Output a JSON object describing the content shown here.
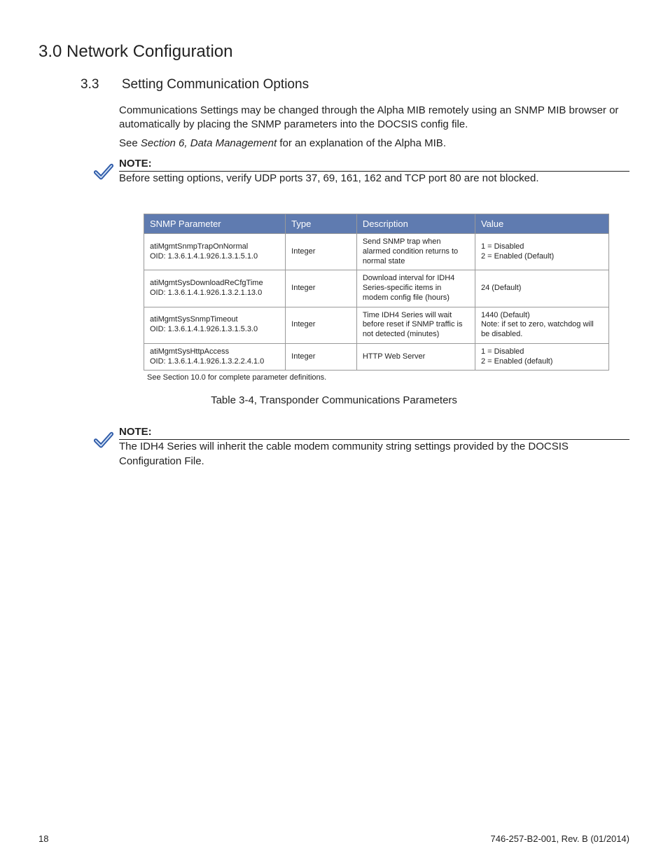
{
  "chapter": {
    "title": "3.0 Network Configuration"
  },
  "section": {
    "number": "3.3",
    "title": "Setting Communication Options"
  },
  "intro": {
    "para1_a": "Communications Settings may be changed through the Alpha MIB remotely using an SNMP MIB browser or automatically by placing the SNMP parameters into the DOCSIS config file.",
    "para2_prefix": "See ",
    "para2_em": "Section 6, Data Management",
    "para2_suffix": " for an explanation of the Alpha MIB."
  },
  "note1": {
    "label": "NOTE:",
    "body": "Before setting options, verify UDP ports 37, 69, 161, 162 and TCP port 80 are not blocked."
  },
  "table": {
    "header_bg": "#5f7bb0",
    "header_fg": "#ffffff",
    "border_color": "#999999",
    "columns": [
      "SNMP Parameter",
      "Type",
      "Description",
      "Value"
    ],
    "rows": [
      {
        "param": "atiMgmtSnmpTrapOnNormal",
        "oid": "OID: 1.3.6.1.4.1.926.1.3.1.5.1.0",
        "type": "Integer",
        "desc": "Send SNMP trap when alarmed condition returns to normal state",
        "value": "1 = Disabled\n2 = Enabled (Default)"
      },
      {
        "param": "atiMgmtSysDownloadReCfgTime",
        "oid": "OID: 1.3.6.1.4.1.926.1.3.2.1.13.0",
        "type": "Integer",
        "desc": "Download interval for IDH4 Series-specific items in modem config file (hours)",
        "value": "24 (Default)"
      },
      {
        "param": "atiMgmtSysSnmpTimeout",
        "oid": "OID: 1.3.6.1.4.1.926.1.3.1.5.3.0",
        "type": "Integer",
        "desc": "Time IDH4 Series will wait before reset if SNMP traffic is not detected (minutes)",
        "value": "1440 (Default)\nNote: if set to zero, watchdog will be disabled."
      },
      {
        "param": "atiMgmtSysHttpAccess",
        "oid": "OID: 1.3.6.1.4.1.926.1.3.2.2.4.1.0",
        "type": "Integer",
        "desc": "HTTP Web Server",
        "value": "1 = Disabled\n2 = Enabled (default)"
      }
    ],
    "footnote": "See Section 10.0 for complete parameter definitions.",
    "caption": "Table 3-4, Transponder Communications Parameters"
  },
  "note2": {
    "label": "NOTE:",
    "body": "The IDH4 Series will inherit the cable modem community string settings provided by the DOCSIS Configuration File."
  },
  "footer": {
    "page": "18",
    "doc": "746-257-B2-001, Rev. B (01/2014)"
  },
  "icons": {
    "check_stroke": "#2e5aa8",
    "check_fill_light": "#cfe0f5"
  }
}
